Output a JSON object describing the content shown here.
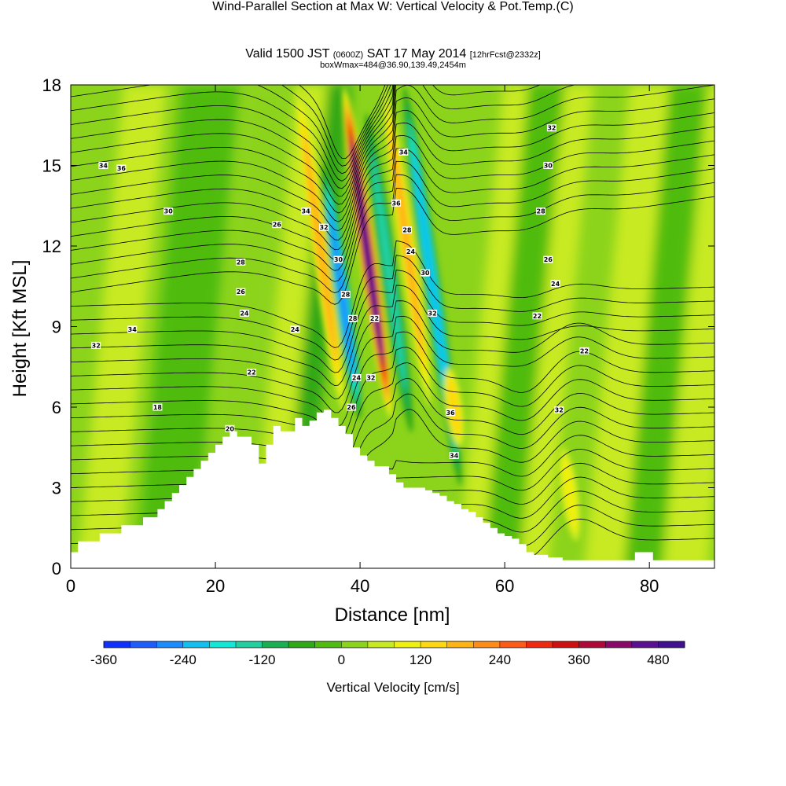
{
  "title": {
    "main": "Wind-Parallel Section at Max W: Vertical Velocity & Pot.Temp.",
    "copyright": "(C)",
    "valid_prefix": "Valid 1500 JST",
    "zulu": "(0600Z)",
    "valid_suffix": "SAT 17 May 2014",
    "forecast": "[12hrFcst@2332z]",
    "box_info": "boxWmax=484@36.90,139.49,2454m"
  },
  "chart_data": {
    "type": "heatmap",
    "xlabel": "Distance [nm]",
    "ylabel": "Height [Kft MSL]",
    "xlim": [
      0,
      89
    ],
    "ylim": [
      0,
      18
    ],
    "x_ticks": [
      "0",
      "20",
      "40",
      "60",
      "80"
    ],
    "y_ticks": [
      "0",
      "3",
      "6",
      "9",
      "12",
      "15",
      "18"
    ],
    "grid": false,
    "colorbar": {
      "label": "Vertical Velocity [cm/s]",
      "tick_labels": [
        "-360",
        "-240",
        "-120",
        "0",
        "120",
        "240",
        "360",
        "480"
      ],
      "tick_values": [
        -360,
        -240,
        -120,
        0,
        120,
        240,
        360,
        480
      ],
      "range": [
        -360,
        520
      ],
      "colors": [
        "#1030ff",
        "#1e5cff",
        "#1a8cff",
        "#10c0f0",
        "#10e8d8",
        "#20d0a0",
        "#18b050",
        "#30a818",
        "#50bc10",
        "#8cd41c",
        "#c8ea20",
        "#f0f010",
        "#ffd810",
        "#ffb414",
        "#ff8c18",
        "#ff5a18",
        "#f02810",
        "#d01010",
        "#b00838",
        "#8a0868",
        "#5a1090",
        "#401090"
      ]
    },
    "terrain_kft": [
      [
        0,
        0.6
      ],
      [
        1,
        1.0
      ],
      [
        4,
        1.3
      ],
      [
        7,
        1.6
      ],
      [
        10,
        1.9
      ],
      [
        11,
        1.9
      ],
      [
        12,
        2.2
      ],
      [
        13,
        2.5
      ],
      [
        14,
        2.8
      ],
      [
        15,
        3.1
      ],
      [
        16,
        3.4
      ],
      [
        17,
        3.7
      ],
      [
        18,
        4.0
      ],
      [
        19,
        4.3
      ],
      [
        20,
        4.6
      ],
      [
        21,
        4.9
      ],
      [
        22,
        5.1
      ],
      [
        23,
        4.9
      ],
      [
        25,
        4.6
      ],
      [
        26,
        3.9
      ],
      [
        27,
        4.6
      ],
      [
        28,
        5.3
      ],
      [
        29,
        5.1
      ],
      [
        31,
        5.6
      ],
      [
        32,
        5.3
      ],
      [
        33,
        5.5
      ],
      [
        34,
        5.8
      ],
      [
        35,
        5.9
      ],
      [
        36,
        5.6
      ],
      [
        37,
        5.3
      ],
      [
        38,
        5.0
      ],
      [
        39,
        4.5
      ],
      [
        40,
        4.2
      ],
      [
        41,
        4.0
      ],
      [
        42,
        3.8
      ],
      [
        44,
        3.5
      ],
      [
        45,
        3.2
      ],
      [
        46,
        3.0
      ],
      [
        47,
        3.0
      ],
      [
        48,
        3.0
      ],
      [
        49,
        2.9
      ],
      [
        50,
        2.8
      ],
      [
        51,
        2.7
      ],
      [
        52,
        2.5
      ],
      [
        53,
        2.4
      ],
      [
        54,
        2.2
      ],
      [
        55,
        2.1
      ],
      [
        56,
        1.9
      ],
      [
        57,
        1.7
      ],
      [
        58,
        1.5
      ],
      [
        59,
        1.3
      ],
      [
        60,
        1.2
      ],
      [
        61,
        1.1
      ],
      [
        62,
        0.9
      ],
      [
        63,
        0.6
      ],
      [
        64,
        0.5
      ],
      [
        65,
        0.5
      ],
      [
        66,
        0.4
      ],
      [
        67,
        0.4
      ],
      [
        68,
        0.3
      ],
      [
        69,
        0.3
      ],
      [
        70,
        0.3
      ],
      [
        74,
        0.3
      ],
      [
        77,
        0.3
      ],
      [
        78,
        0.6
      ],
      [
        80,
        0.6
      ],
      [
        80.5,
        0.3
      ],
      [
        84,
        0.3
      ],
      [
        89,
        0.3
      ]
    ],
    "vertical_velocity_features": [
      {
        "kind": "updraft",
        "x_nm": 34.5,
        "ymin_kft": 5.8,
        "ymax_kft": 18,
        "peak_cm_s": 180
      },
      {
        "kind": "downdraft",
        "x_nm": 37.5,
        "ymin_kft": 5.5,
        "ymax_kft": 15,
        "peak_cm_s": -240
      },
      {
        "kind": "updraft",
        "x_nm": 41.0,
        "ymin_kft": 5.5,
        "ymax_kft": 18,
        "peak_cm_s": 484
      },
      {
        "kind": "downdraft",
        "x_nm": 44.0,
        "ymin_kft": 5.0,
        "ymax_kft": 17,
        "peak_cm_s": -150
      },
      {
        "kind": "updraft",
        "x_nm": 46.5,
        "ymin_kft": 6.0,
        "ymax_kft": 18,
        "peak_cm_s": 180
      },
      {
        "kind": "downdraft",
        "x_nm": 50.0,
        "ymin_kft": 3.0,
        "ymax_kft": 18,
        "peak_cm_s": -220
      },
      {
        "kind": "updraft",
        "x_nm": 53.0,
        "ymin_kft": 4.5,
        "ymax_kft": 7.5,
        "peak_cm_s": 120
      },
      {
        "kind": "updraft",
        "x_nm": 69.0,
        "ymin_kft": 1.0,
        "ymax_kft": 4.5,
        "peak_cm_s": 110
      }
    ],
    "potential_temperature_labels": [
      "34",
      "34",
      "36",
      "32",
      "30",
      "28",
      "26",
      "24",
      "22",
      "18",
      "20",
      "22",
      "26",
      "24",
      "34",
      "32",
      "30",
      "28",
      "28",
      "24",
      "26",
      "22",
      "32",
      "34",
      "36",
      "24",
      "28",
      "30",
      "32",
      "36",
      "34",
      "32",
      "30",
      "28",
      "26",
      "24",
      "22",
      "22",
      "32"
    ]
  }
}
